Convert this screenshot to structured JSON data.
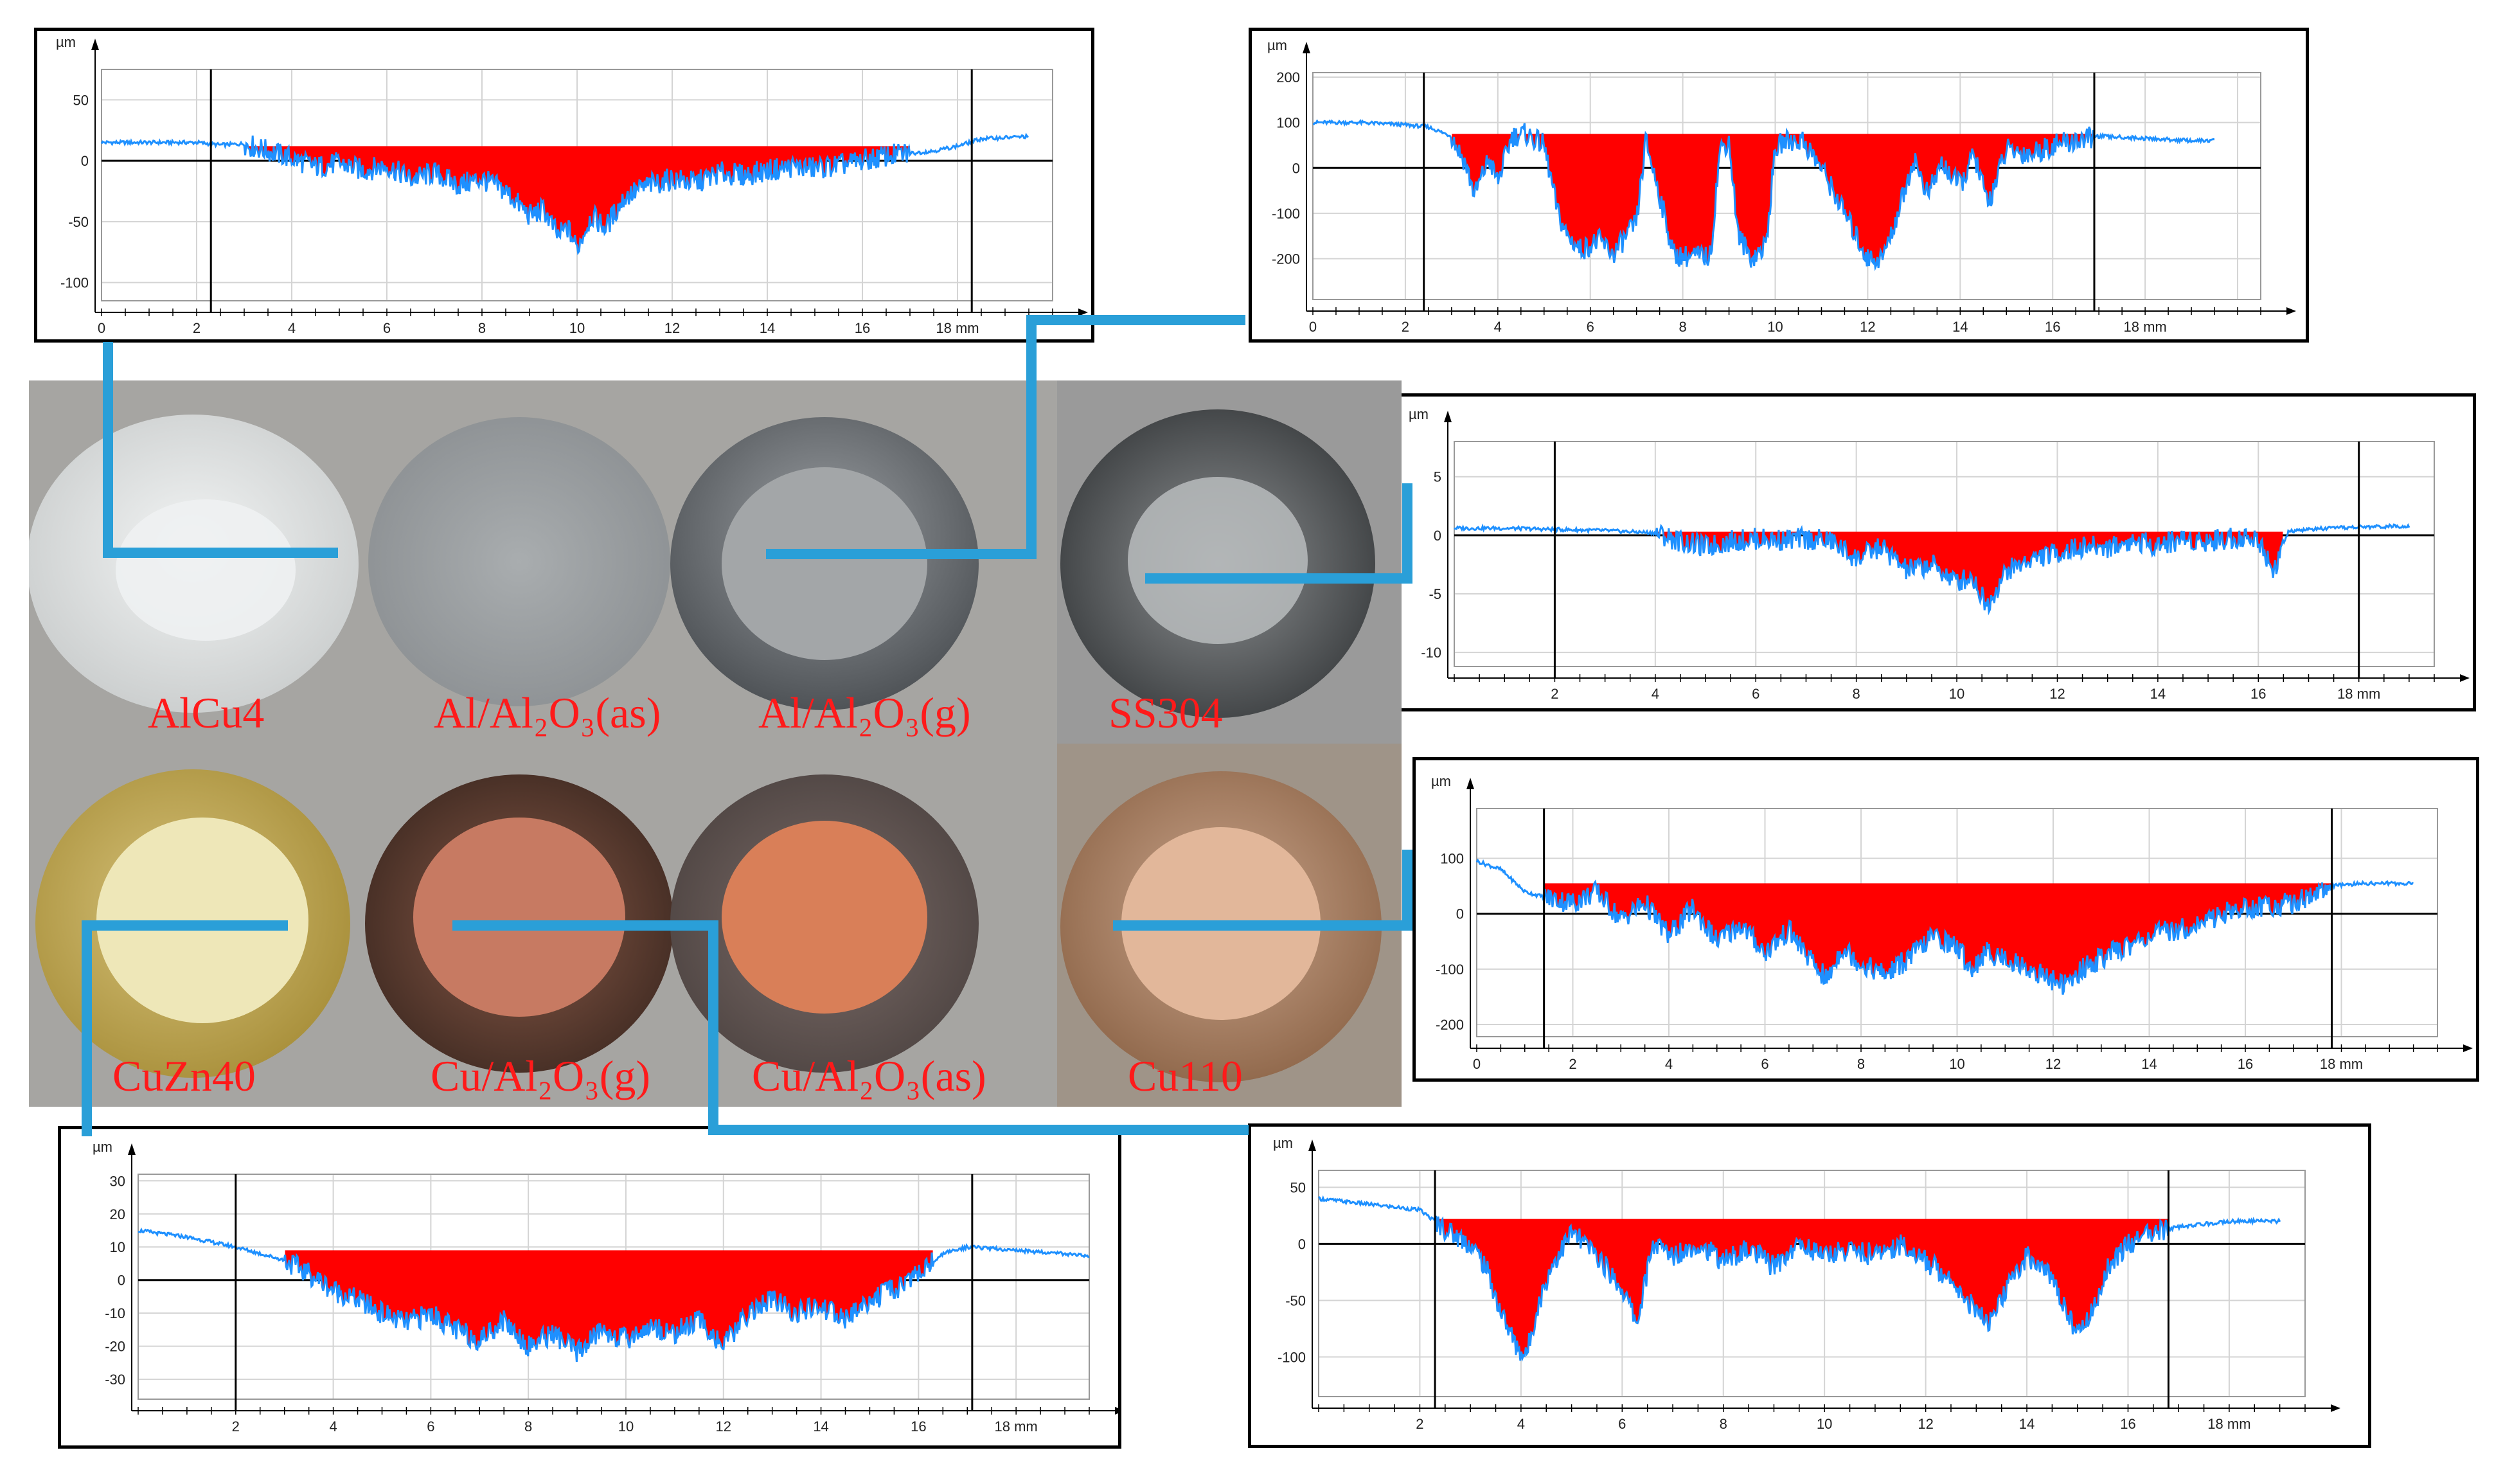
{
  "colors": {
    "fill": "#ff0000",
    "profile": "#1e90ff",
    "connector": "#2a9fd8",
    "label": "#ff1a1a"
  },
  "samples": [
    {
      "name": "AlCu4",
      "label": "AlCu4"
    },
    {
      "name": "Al/Al2O3(as)",
      "label": "Al/Al₂O₃(as)"
    },
    {
      "name": "Al/Al2O3(g)",
      "label": "Al/Al₂O₃(g)"
    },
    {
      "name": "SS304",
      "label": "SS304"
    },
    {
      "name": "CuZn40",
      "label": "CuZn40"
    },
    {
      "name": "Cu/Al2O3(g)",
      "label": "Cu/Al₂O₃(g)"
    },
    {
      "name": "Cu/Al2O3(as)",
      "label": "Cu/Al₂O₃(as)"
    },
    {
      "name": "Cu110",
      "label": "Cu110"
    }
  ],
  "chart_data": [
    {
      "type": "area",
      "sample": "AlCu4",
      "title": "",
      "ylabel": "µm",
      "xlabel": "mm",
      "x_unit_label": "18 mm",
      "y_unit_label": "µm",
      "xlim": [
        0,
        20
      ],
      "ylim": [
        -115,
        75
      ],
      "yticks": [
        50,
        0,
        -50,
        -100
      ],
      "ytick_labels": [
        "50",
        "0",
        "-50",
        "-100"
      ],
      "xticks": [
        0,
        2,
        4,
        6,
        8,
        10,
        12,
        14,
        16
      ],
      "xtick_labels": [
        "0",
        "2",
        "4",
        "6",
        "8",
        "10",
        "12",
        "14",
        "16"
      ],
      "x_unit_tick": 18,
      "markers": [
        2.3,
        18.3
      ],
      "fill_baseline": 12,
      "fill_range": [
        3,
        17
      ],
      "profile_x": [
        0,
        1,
        2,
        2.5,
        3,
        3.5,
        4,
        4.5,
        5,
        5.5,
        6,
        6.5,
        7,
        7.5,
        8,
        8.5,
        9,
        9.3,
        9.6,
        9.8,
        10,
        10.3,
        10.6,
        11,
        11.5,
        12,
        12.5,
        13,
        13.5,
        14,
        14.5,
        15,
        15.5,
        16,
        16.5,
        17,
        17.5,
        18,
        18.5,
        19,
        19.5
      ],
      "profile_y": [
        15,
        15,
        15,
        13,
        14,
        8,
        2,
        -5,
        -2,
        -8,
        -4,
        -15,
        -10,
        -20,
        -15,
        -25,
        -45,
        -40,
        -62,
        -55,
        -72,
        -45,
        -55,
        -30,
        -20,
        -15,
        -18,
        -10,
        -12,
        -8,
        -5,
        -6,
        -4,
        0,
        4,
        6,
        8,
        12,
        18,
        19,
        20
      ]
    },
    {
      "type": "area",
      "sample": "Al/Al2O3(g)",
      "title": "",
      "ylabel": "µm",
      "xlabel": "mm",
      "x_unit_label": "18 mm",
      "y_unit_label": "µm",
      "xlim": [
        0,
        20.5
      ],
      "ylim": [
        -290,
        210
      ],
      "yticks": [
        200,
        100,
        0,
        -100,
        -200
      ],
      "ytick_labels": [
        "200",
        "100",
        "0",
        "-100",
        "-200"
      ],
      "xticks": [
        0,
        2,
        4,
        6,
        8,
        10,
        12,
        14,
        16
      ],
      "xtick_labels": [
        "0",
        "2",
        "4",
        "6",
        "8",
        "10",
        "12",
        "14",
        "16"
      ],
      "x_unit_tick": 18,
      "markers": [
        2.4,
        16.9
      ],
      "fill_baseline": 75,
      "fill_range": [
        3,
        16.9
      ],
      "profile_x": [
        0,
        1,
        2,
        2.5,
        3,
        3.3,
        3.5,
        3.8,
        4,
        4.3,
        4.6,
        5,
        5.3,
        5.5,
        5.8,
        6.2,
        6.5,
        7,
        7.2,
        7.5,
        7.8,
        8,
        8.6,
        8.8,
        9,
        9.2,
        9.5,
        9.8,
        10,
        10.2,
        10.6,
        11,
        11.5,
        12,
        12.3,
        12.5,
        13,
        13.3,
        13.6,
        14,
        14.3,
        14.6,
        15,
        15.5,
        16,
        16.5,
        17,
        18,
        19,
        19.5
      ],
      "profile_y": [
        100,
        100,
        95,
        90,
        70,
        10,
        -60,
        20,
        -30,
        70,
        75,
        50,
        -100,
        -150,
        -180,
        -160,
        -190,
        -120,
        60,
        -60,
        -190,
        -195,
        -195,
        40,
        60,
        -150,
        -200,
        -170,
        40,
        60,
        60,
        0,
        -100,
        -200,
        -200,
        -150,
        20,
        -60,
        10,
        -40,
        30,
        -80,
        40,
        30,
        50,
        60,
        70,
        65,
        60,
        60
      ]
    },
    {
      "type": "area",
      "sample": "SS304",
      "title": "",
      "ylabel": "µm",
      "xlabel": "mm",
      "x_unit_label": "18 mm",
      "y_unit_label": "µm",
      "xlim": [
        0,
        19.5
      ],
      "ylim": [
        -11.2,
        8
      ],
      "yticks": [
        5,
        0,
        -5,
        -10
      ],
      "ytick_labels": [
        "5",
        "0",
        "-5",
        "-10"
      ],
      "xticks": [
        2,
        4,
        6,
        8,
        10,
        12,
        14,
        16
      ],
      "xtick_labels": [
        "2",
        "4",
        "6",
        "8",
        "10",
        "12",
        "14",
        "16"
      ],
      "x_unit_tick": 18,
      "markers": [
        2,
        18
      ],
      "fill_baseline": 0.3,
      "fill_range": [
        4,
        16.5
      ],
      "profile_x": [
        0,
        1,
        2,
        3,
        4,
        4.5,
        5,
        5.5,
        6,
        6.5,
        7,
        7.5,
        8,
        8.5,
        9,
        9.5,
        10,
        10.3,
        10.6,
        11,
        11.5,
        12,
        12.5,
        13,
        13.5,
        14,
        14.5,
        15,
        15.5,
        16,
        16.3,
        16.6,
        17,
        18,
        19
      ],
      "profile_y": [
        0.6,
        0.6,
        0.5,
        0.4,
        0.2,
        -0.5,
        -1,
        -0.5,
        -0.3,
        -0.4,
        -0.3,
        -0.5,
        -2,
        -1,
        -3,
        -2.5,
        -4,
        -3.5,
        -6,
        -3,
        -2,
        -1.5,
        -1,
        -1,
        -0.5,
        -0.8,
        -0.3,
        -0.5,
        -0.2,
        -0.3,
        -3,
        0.3,
        0.5,
        0.7,
        0.8
      ]
    },
    {
      "type": "area",
      "sample": "Cu110",
      "title": "",
      "ylabel": "µm",
      "xlabel": "mm",
      "x_unit_label": "18 mm",
      "y_unit_label": "µm",
      "xlim": [
        0,
        20
      ],
      "ylim": [
        -222,
        190
      ],
      "yticks": [
        100,
        0,
        -100,
        -200
      ],
      "ytick_labels": [
        "100",
        "0",
        "-100",
        "-200"
      ],
      "xticks": [
        0,
        2,
        4,
        6,
        8,
        10,
        12,
        14,
        16
      ],
      "xtick_labels": [
        "0",
        "2",
        "4",
        "6",
        "8",
        "10",
        "12",
        "14",
        "16"
      ],
      "x_unit_tick": 18,
      "markers": [
        1.4,
        17.8
      ],
      "fill_baseline": 55,
      "fill_range": [
        1.4,
        17.8
      ],
      "profile_x": [
        0,
        0.5,
        1,
        1.4,
        2,
        2.5,
        3,
        3.5,
        4,
        4.5,
        5,
        5.5,
        6,
        6.5,
        7,
        7.3,
        7.6,
        8,
        8.5,
        9,
        9.5,
        10,
        10.3,
        10.6,
        11,
        11.5,
        12,
        12.3,
        12.6,
        13,
        13.5,
        14,
        14.5,
        15,
        15.5,
        16,
        16.5,
        17,
        17.8,
        18.5,
        19.5
      ],
      "profile_y": [
        95,
        80,
        40,
        30,
        20,
        40,
        -10,
        20,
        -40,
        10,
        -50,
        -20,
        -70,
        -30,
        -90,
        -120,
        -60,
        -90,
        -110,
        -80,
        -40,
        -60,
        -100,
        -70,
        -80,
        -100,
        -120,
        -130,
        -100,
        -80,
        -60,
        -40,
        -30,
        -20,
        0,
        10,
        15,
        20,
        50,
        55,
        55
      ]
    },
    {
      "type": "area",
      "sample": "CuZn40",
      "title": "",
      "ylabel": "µm",
      "xlabel": "mm",
      "x_unit_label": "18 mm",
      "y_unit_label": "µm",
      "xlim": [
        0,
        19.5
      ],
      "ylim": [
        -36,
        32
      ],
      "yticks": [
        30,
        20,
        10,
        0,
        -10,
        -20,
        -30
      ],
      "ytick_labels": [
        "30",
        "20",
        "10",
        "0",
        "-10",
        "-20",
        "-30"
      ],
      "xticks": [
        2,
        4,
        6,
        8,
        10,
        12,
        14,
        16
      ],
      "xtick_labels": [
        "2",
        "4",
        "6",
        "8",
        "10",
        "12",
        "14",
        "16"
      ],
      "x_unit_tick": 18,
      "markers": [
        2,
        17.1
      ],
      "fill_baseline": 9,
      "fill_range": [
        3,
        16.3
      ],
      "profile_x": [
        0,
        1,
        2,
        2.5,
        3,
        3.5,
        4,
        4.5,
        5,
        5.5,
        6,
        6.5,
        7,
        7.5,
        8,
        8.5,
        9,
        9.5,
        10,
        10.5,
        11,
        11.5,
        12,
        12.5,
        13,
        13.5,
        14,
        14.5,
        15,
        15.5,
        16,
        16.5,
        17,
        18,
        19,
        19.5
      ],
      "profile_y": [
        15,
        13,
        10,
        8,
        6,
        2,
        -3,
        -6,
        -10,
        -13,
        -10,
        -15,
        -18,
        -12,
        -20,
        -16,
        -22,
        -15,
        -18,
        -14,
        -16,
        -12,
        -20,
        -10,
        -6,
        -10,
        -8,
        -12,
        -6,
        -3,
        2,
        8,
        10,
        9,
        8,
        7
      ]
    },
    {
      "type": "area",
      "sample": "Cu/Al2O3(g)",
      "title": "",
      "ylabel": "µm",
      "xlabel": "mm",
      "x_unit_label": "18 mm",
      "y_unit_label": "µm",
      "xlim": [
        0,
        19.5
      ],
      "ylim": [
        -135,
        65
      ],
      "yticks": [
        50,
        0,
        -50,
        -100
      ],
      "ytick_labels": [
        "50",
        "0",
        "-50",
        "-100"
      ],
      "xticks": [
        2,
        4,
        6,
        8,
        10,
        12,
        14,
        16
      ],
      "xtick_labels": [
        "2",
        "4",
        "6",
        "8",
        "10",
        "12",
        "14",
        "16"
      ],
      "x_unit_tick": 18,
      "markers": [
        2.3,
        16.8
      ],
      "fill_baseline": 22,
      "fill_range": [
        2.3,
        16.8
      ],
      "profile_x": [
        0,
        1,
        2,
        2.3,
        2.6,
        3,
        3.3,
        3.6,
        3.9,
        4.1,
        4.3,
        4.6,
        5,
        5.5,
        6,
        6.3,
        6.6,
        7,
        7.5,
        8,
        8.5,
        9,
        9.5,
        10,
        10.5,
        11,
        11.5,
        12,
        12.5,
        13,
        13.3,
        13.6,
        14,
        14.5,
        15,
        15.3,
        15.6,
        16,
        16.5,
        17,
        18,
        19
      ],
      "profile_y": [
        40,
        35,
        30,
        20,
        10,
        0,
        -20,
        -60,
        -90,
        -100,
        -60,
        -20,
        10,
        -10,
        -40,
        -70,
        0,
        -10,
        0,
        -15,
        -5,
        -20,
        0,
        -10,
        -5,
        -10,
        0,
        -15,
        -30,
        -60,
        -70,
        -40,
        -10,
        -30,
        -80,
        -60,
        -20,
        0,
        10,
        15,
        20,
        20
      ]
    }
  ]
}
